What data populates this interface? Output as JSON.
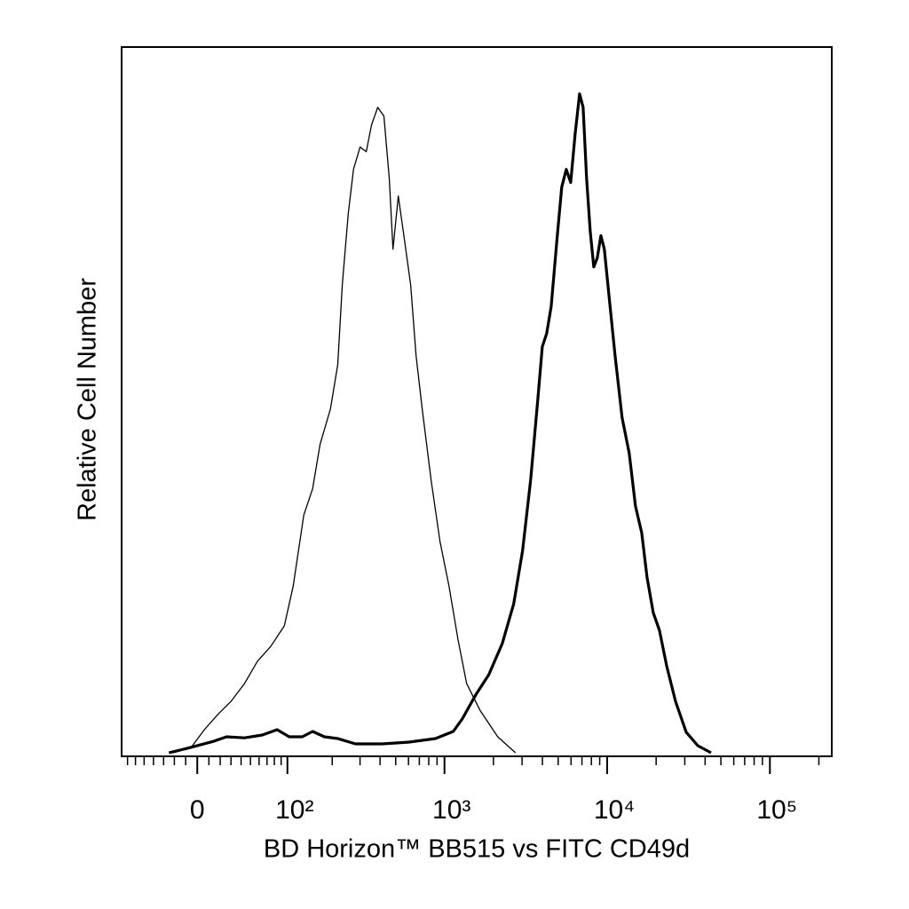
{
  "chart_data": {
    "type": "line",
    "x_label": "BD Horizon™ BB515 vs FITC CD49d",
    "y_label": "Relative Cell Number",
    "xscale": "biexponential",
    "xlim": [
      -78,
      240000
    ],
    "ylim": [
      0,
      100
    ],
    "xticks": [
      0,
      {
        "value": 100,
        "label": "10²"
      },
      {
        "value": 1000,
        "label": "10³"
      },
      {
        "value": 10000,
        "label": "10⁴"
      },
      {
        "value": 100000,
        "label": "10⁵"
      }
    ],
    "xminorticks": [
      -70,
      -60,
      -50,
      -40,
      -30,
      -20,
      -10,
      10,
      20,
      30,
      40,
      50,
      60,
      70,
      80,
      90,
      200,
      300,
      400,
      500,
      600,
      700,
      800,
      900,
      2000,
      3000,
      4000,
      5000,
      6000,
      7000,
      8000,
      9000,
      20000,
      30000,
      40000,
      50000,
      60000,
      70000,
      80000,
      90000,
      200000
    ],
    "series": [
      {
        "color": "#000000",
        "line_width": 1.3,
        "x": [
          -21,
          -5.3,
          6.1,
          17.8,
          30,
          43.5,
          58,
          75,
          95,
          110,
          130,
          149,
          167,
          195,
          217,
          232,
          253,
          273,
          300,
          328,
          354,
          387,
          423,
          456,
          481,
          519,
          567,
          619,
          668,
          729,
          827,
          939,
          1066,
          1210,
          1370,
          1654,
          2127,
          2733
        ],
        "values": [
          0.5,
          1.25,
          3.75,
          5.9,
          7.75,
          10.25,
          13.4,
          15.5,
          18.4,
          24,
          34,
          37.75,
          44,
          49,
          55.25,
          66.5,
          76.5,
          82.75,
          85.9,
          85.25,
          89,
          91.5,
          90.25,
          81.5,
          71.5,
          79,
          72.75,
          66.5,
          56.5,
          49,
          39,
          30.25,
          24,
          16.5,
          10.25,
          6.5,
          2.75,
          0.5
        ]
      },
      {
        "color": "#000000",
        "line_width": 3.2,
        "x": [
          -25,
          -9.2,
          13.8,
          25.9,
          43.5,
          64,
          84,
          103,
          127,
          149,
          178,
          217,
          281,
          412,
          604,
          879,
          1133,
          1285,
          1551,
          1873,
          2266,
          2666,
          3024,
          3387,
          3745,
          3994,
          4248,
          4527,
          4939,
          5260,
          5606,
          5969,
          6357,
          6769,
          7120,
          7478,
          7866,
          8272,
          8696,
          9145,
          9611,
          10357,
          11181,
          12362,
          13665,
          14926,
          16301,
          17574,
          19210,
          20968,
          23210,
          26300,
          30600,
          36057,
          43510
        ],
        "values": [
          0.5,
          1.1,
          2.1,
          2.75,
          2.6,
          3,
          3.75,
          2.75,
          2.75,
          3.5,
          2.75,
          2.5,
          1.75,
          1.75,
          2,
          2.5,
          3.5,
          5.25,
          8.6,
          11.5,
          15.9,
          21.5,
          29,
          39,
          50.25,
          57.75,
          59.6,
          63.4,
          73.4,
          80.25,
          82.75,
          80.9,
          87.75,
          93.4,
          91.5,
          81.5,
          74,
          69,
          70.25,
          73.4,
          71.5,
          64,
          56.5,
          47.75,
          42.75,
          35.25,
          31.5,
          25.25,
          20.25,
          17.75,
          12.75,
          7.75,
          3.4,
          1.5,
          0.5
        ]
      }
    ]
  }
}
